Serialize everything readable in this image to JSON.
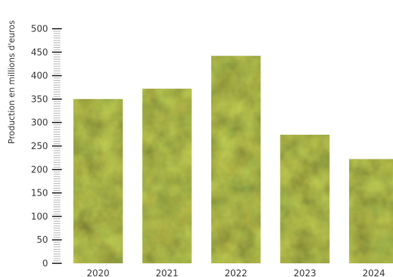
{
  "chart_data": {
    "type": "bar",
    "categories": [
      "2020",
      "2021",
      "2022",
      "2023",
      "2024"
    ],
    "values": [
      350,
      372,
      442,
      274,
      222
    ],
    "ylabel": "Production en millions d'euros",
    "xlabel": "",
    "ylim": [
      0,
      500
    ],
    "yticks": [
      0,
      50,
      100,
      150,
      200,
      250,
      300,
      350,
      400,
      450,
      500
    ],
    "grid": false,
    "legend": "none",
    "bar_fill": "moss-texture",
    "colors": {
      "bar_base": "#6f6a24",
      "bar_light": "#9a9a3a",
      "bar_dark": "#3f4418",
      "axis": "#111111",
      "text": "#333333"
    }
  }
}
